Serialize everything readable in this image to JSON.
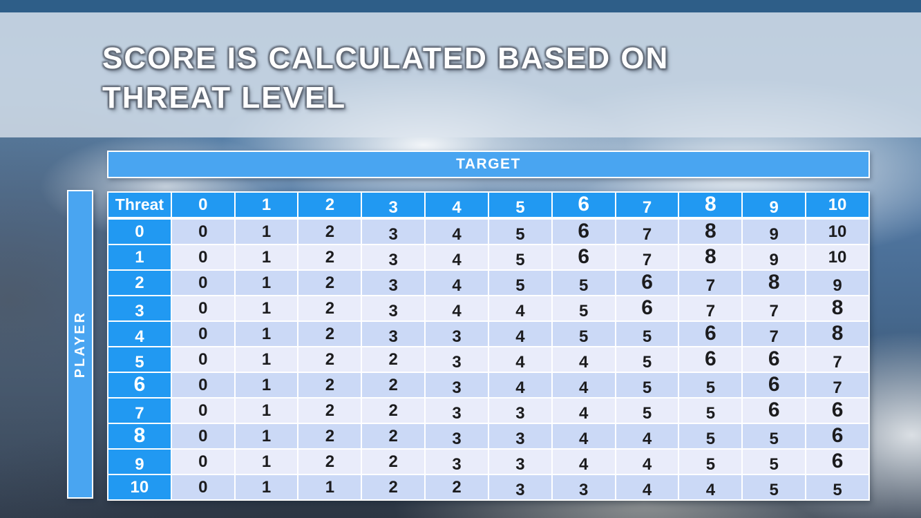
{
  "slide": {
    "title_lines": [
      "SCORE IS CALCULATED BASED ON",
      "THREAT LEVEL"
    ]
  },
  "matrix": {
    "target_label": "TARGET",
    "player_label": "PLAYER",
    "corner_label": "Threat",
    "column_headers": [
      "0",
      "1",
      "2",
      "3",
      "4",
      "5",
      "6",
      "7",
      "8",
      "9",
      "10"
    ],
    "row_headers": [
      "0",
      "1",
      "2",
      "3",
      "4",
      "5",
      "6",
      "7",
      "8",
      "9",
      "10"
    ],
    "rows": [
      [
        0,
        1,
        2,
        3,
        4,
        5,
        6,
        7,
        8,
        9,
        10
      ],
      [
        0,
        1,
        2,
        3,
        4,
        5,
        6,
        7,
        8,
        9,
        10
      ],
      [
        0,
        1,
        2,
        3,
        4,
        5,
        5,
        6,
        7,
        8,
        9
      ],
      [
        0,
        1,
        2,
        3,
        4,
        4,
        5,
        6,
        7,
        7,
        8
      ],
      [
        0,
        1,
        2,
        3,
        3,
        4,
        5,
        5,
        6,
        7,
        8
      ],
      [
        0,
        1,
        2,
        2,
        3,
        4,
        4,
        5,
        6,
        6,
        7
      ],
      [
        0,
        1,
        2,
        2,
        3,
        4,
        4,
        5,
        5,
        6,
        7
      ],
      [
        0,
        1,
        2,
        2,
        3,
        3,
        4,
        5,
        5,
        6,
        6
      ],
      [
        0,
        1,
        2,
        2,
        3,
        3,
        4,
        4,
        5,
        5,
        6
      ],
      [
        0,
        1,
        2,
        2,
        3,
        3,
        4,
        4,
        5,
        5,
        6
      ],
      [
        0,
        1,
        1,
        2,
        2,
        3,
        3,
        4,
        4,
        5,
        5
      ]
    ]
  },
  "colors": {
    "top_bar": "#2e5e88",
    "band_blue": "#49a5f1",
    "header_cell_blue": "#2199f2",
    "row_even": "#cbd9f6",
    "row_odd": "#e9ecfa",
    "cell_text": "#1c1c1e",
    "header_text": "#ffffff"
  }
}
